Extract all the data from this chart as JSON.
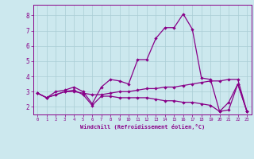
{
  "xlabel": "Windchill (Refroidissement éolien,°C)",
  "background_color": "#cce8ee",
  "grid_color": "#aacdd5",
  "line_color": "#880088",
  "x_ticks": [
    0,
    1,
    2,
    3,
    4,
    5,
    6,
    7,
    8,
    9,
    10,
    11,
    12,
    13,
    14,
    15,
    16,
    17,
    18,
    19,
    20,
    21,
    22,
    23
  ],
  "y_ticks": [
    2,
    3,
    4,
    5,
    6,
    7,
    8
  ],
  "ylim": [
    1.5,
    8.7
  ],
  "xlim": [
    -0.5,
    23.5
  ],
  "series1": [
    2.9,
    2.6,
    3.0,
    3.1,
    3.3,
    3.0,
    2.2,
    3.3,
    3.8,
    3.7,
    3.5,
    5.1,
    5.1,
    6.5,
    7.2,
    7.2,
    8.1,
    7.1,
    3.9,
    3.8,
    1.7,
    2.3,
    3.5,
    1.7
  ],
  "series2": [
    2.9,
    2.6,
    2.8,
    3.0,
    3.0,
    2.9,
    2.8,
    2.8,
    2.9,
    3.0,
    3.0,
    3.1,
    3.2,
    3.2,
    3.3,
    3.3,
    3.4,
    3.5,
    3.6,
    3.7,
    3.7,
    3.8,
    3.8,
    1.7
  ],
  "series3": [
    2.9,
    2.6,
    2.8,
    3.0,
    3.1,
    2.8,
    2.1,
    2.7,
    2.7,
    2.6,
    2.6,
    2.6,
    2.6,
    2.5,
    2.4,
    2.4,
    2.3,
    2.3,
    2.2,
    2.1,
    1.7,
    1.8,
    3.5,
    1.7
  ]
}
